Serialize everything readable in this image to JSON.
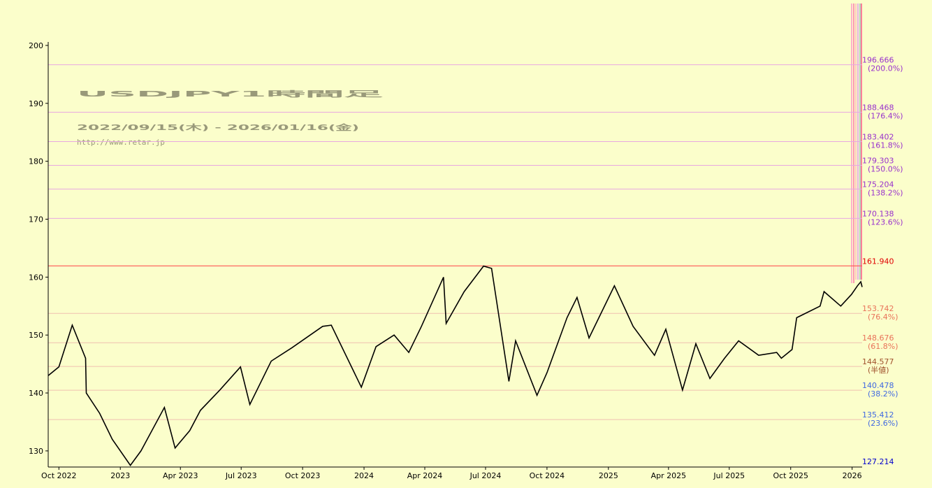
{
  "chart_data": {
    "type": "line",
    "title": "USDJPY1時間足",
    "subtitle": "2022/09/15(木) - 2026/01/16(金)",
    "url": "http://www.retar.jp",
    "color": "#000000",
    "x": [
      "2022-09-15",
      "2022-10-01",
      "2022-10-21",
      "2022-11-10",
      "2022-11-11",
      "2022-12-01",
      "2022-12-20",
      "2023-01-16",
      "2023-02-01",
      "2023-03-08",
      "2023-03-24",
      "2023-04-15",
      "2023-05-01",
      "2023-05-30",
      "2023-06-30",
      "2023-07-14",
      "2023-08-15",
      "2023-09-15",
      "2023-10-31",
      "2023-11-13",
      "2023-12-28",
      "2024-01-19",
      "2024-02-15",
      "2024-03-08",
      "2024-03-27",
      "2024-04-29",
      "2024-05-03",
      "2024-05-30",
      "2024-06-28",
      "2024-07-10",
      "2024-08-05",
      "2024-08-15",
      "2024-09-16",
      "2024-10-01",
      "2024-10-31",
      "2024-11-15",
      "2024-12-03",
      "2025-01-10",
      "2025-02-07",
      "2025-03-11",
      "2025-03-28",
      "2025-04-22",
      "2025-05-12",
      "2025-06-02",
      "2025-06-24",
      "2025-07-15",
      "2025-08-14",
      "2025-09-10",
      "2025-09-17",
      "2025-10-03",
      "2025-10-10",
      "2025-11-14",
      "2025-11-20",
      "2025-12-15",
      "2025-12-31",
      "2026-01-09",
      "2026-01-14",
      "2026-01-16"
    ],
    "values": [
      143.0,
      144.5,
      151.7,
      146,
      140,
      136.5,
      132,
      127.5,
      130,
      137.5,
      130.5,
      133.5,
      137,
      140.5,
      144.5,
      138,
      145.5,
      147.8,
      151.5,
      151.7,
      141,
      148,
      150,
      147,
      151.5,
      160,
      152,
      157.5,
      161.9,
      161.5,
      142,
      149,
      139.6,
      143.5,
      153,
      156.5,
      149.5,
      158.5,
      151.5,
      146.5,
      151,
      140.5,
      148.5,
      142.5,
      146,
      149,
      146.5,
      147,
      146,
      147.5,
      153,
      155,
      157.5,
      155,
      157,
      158.5,
      159.2,
      158.3
    ],
    "xlim": [
      "2022-09-15",
      "2026-01-16"
    ],
    "xticks": [
      {
        "value": "2022-10-01",
        "label": "Oct 2022"
      },
      {
        "value": "2023-01-01",
        "label": "2023"
      },
      {
        "value": "2023-04-01",
        "label": "Apr 2023"
      },
      {
        "value": "2023-07-01",
        "label": "Jul 2023"
      },
      {
        "value": "2023-10-01",
        "label": "Oct 2023"
      },
      {
        "value": "2024-01-01",
        "label": "2024"
      },
      {
        "value": "2024-04-01",
        "label": "Apr 2024"
      },
      {
        "value": "2024-07-01",
        "label": "Jul 2024"
      },
      {
        "value": "2024-10-01",
        "label": "Oct 2024"
      },
      {
        "value": "2025-01-01",
        "label": "2025"
      },
      {
        "value": "2025-04-01",
        "label": "Apr 2025"
      },
      {
        "value": "2025-07-01",
        "label": "Jul 2025"
      },
      {
        "value": "2025-10-01",
        "label": "Oct 2025"
      },
      {
        "value": "2026-01-01",
        "label": "2026"
      }
    ],
    "ylim": [
      127.214,
      200.6
    ],
    "yticks": [
      130,
      140,
      150,
      160,
      170,
      180,
      190,
      200
    ],
    "levels": {
      "values": [
        196.666,
        188.468,
        183.402,
        179.303,
        175.204,
        170.138,
        161.94,
        153.742,
        148.676,
        144.577,
        140.478,
        135.412,
        127.214
      ],
      "value_labels": [
        "196.666",
        "188.468",
        "183.402",
        "179.303",
        "175.204",
        "170.138",
        "161.940",
        "153.742",
        "148.676",
        "144.577",
        "140.478",
        "135.412",
        "127.214"
      ],
      "labels": [
        "(200.0%)",
        "(176.4%)",
        "(161.8%)",
        "(150.0%)",
        "(138.2%)",
        "(123.6%)",
        null,
        "(76.4%)",
        "(61.8%)",
        "(半値)",
        "(38.2%)",
        "(23.6%)",
        null
      ],
      "colors": [
        "#9932cc",
        "#9932cc",
        "#9932cc",
        "#9932cc",
        "#9932cc",
        "#9932cc",
        "#e00000",
        "#e9735a",
        "#e9735a",
        "#a0522d",
        "#4169e1",
        "#4169e1",
        "#0000cd"
      ]
    }
  }
}
